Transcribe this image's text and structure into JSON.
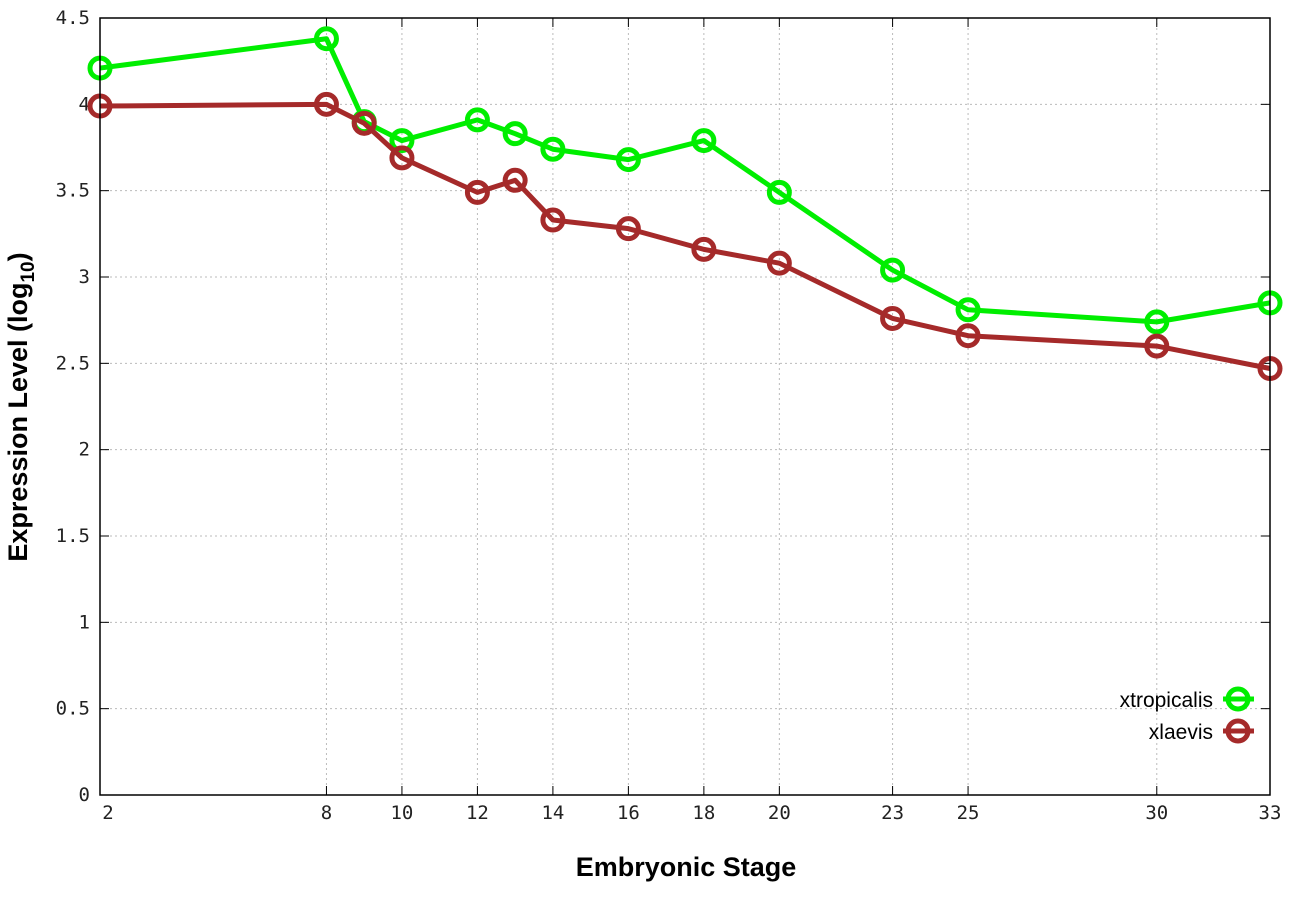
{
  "chart_data": {
    "type": "line",
    "title": "",
    "xlabel": "Embryonic Stage",
    "ylabel_main": "Expression Level (log",
    "ylabel_sub": "10",
    "ylabel_end": ")",
    "x": [
      2,
      8,
      9,
      10,
      12,
      13,
      14,
      16,
      18,
      20,
      23,
      25,
      30,
      33
    ],
    "xticks": [
      2,
      8,
      10,
      12,
      14,
      16,
      18,
      20,
      23,
      25,
      30,
      33
    ],
    "xlim": [
      2,
      33
    ],
    "ylim": [
      0,
      4.5
    ],
    "yticks": [
      "0",
      "0.5",
      "1",
      "1.5",
      "2",
      "2.5",
      "3",
      "3.5",
      "4",
      "4.5"
    ],
    "grid": true,
    "legend_placement": "bottom-right",
    "marker": "open-circle",
    "series": [
      {
        "name": "xtropicalis",
        "color": "#00ee00",
        "values": [
          4.21,
          4.38,
          3.9,
          3.79,
          3.91,
          3.83,
          3.74,
          3.68,
          3.79,
          3.49,
          3.04,
          2.81,
          2.74,
          2.85
        ]
      },
      {
        "name": "xlaevis",
        "color": "#a52a2a",
        "values": [
          3.99,
          4.0,
          3.89,
          3.69,
          3.49,
          3.56,
          3.33,
          3.28,
          3.16,
          3.08,
          2.76,
          2.66,
          2.6,
          2.47
        ]
      }
    ]
  }
}
